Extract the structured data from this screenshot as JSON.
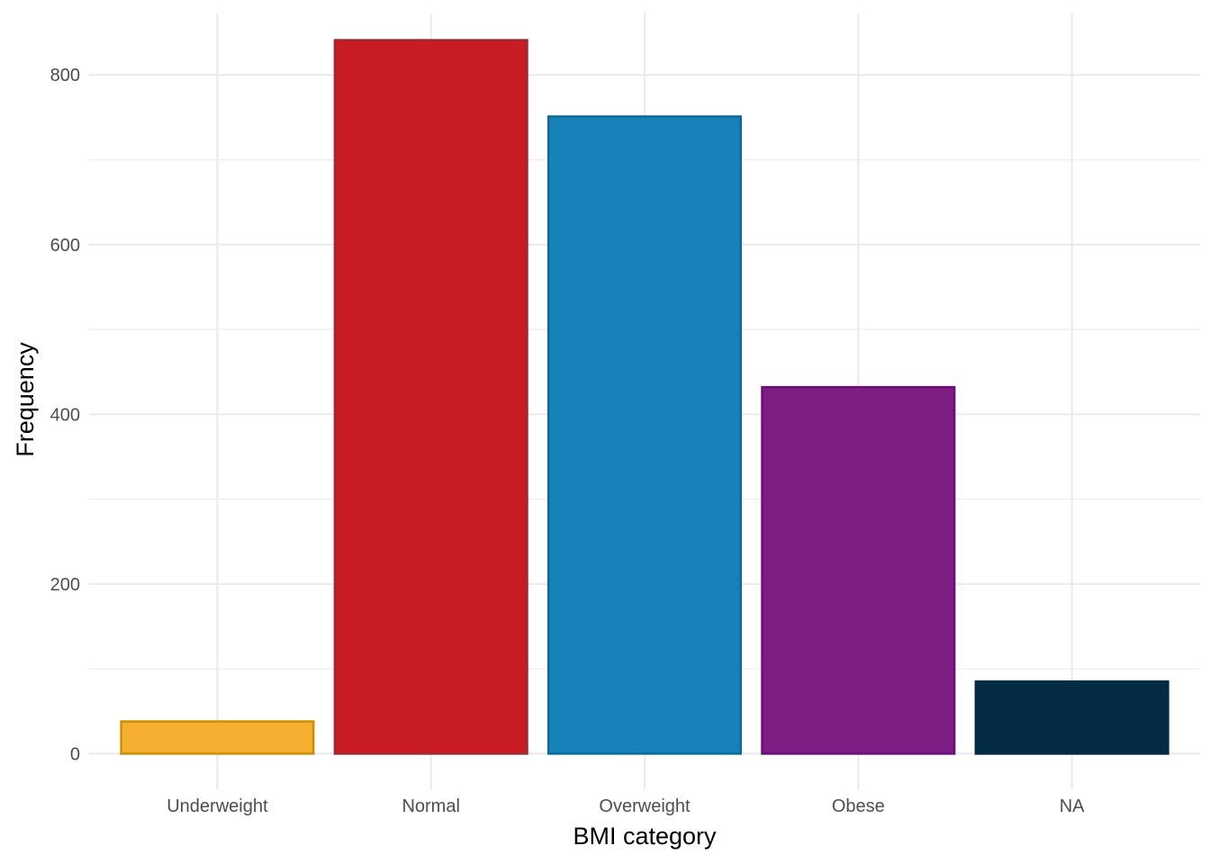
{
  "chart_data": {
    "type": "bar",
    "categories": [
      "Underweight",
      "Normal",
      "Overweight",
      "Obese",
      "NA"
    ],
    "values": [
      38,
      841,
      751,
      432,
      85
    ],
    "fill_colors": [
      "#F5AF31",
      "#C81C25",
      "#1781BA",
      "#7E1E84",
      "#032B44"
    ],
    "border_colors": [
      "#C98F00",
      "#9F2A2D",
      "#0E6A96",
      "#6A0E7A",
      "#032B44"
    ],
    "xlabel": "BMI category",
    "ylabel": "Frequency",
    "ylim": [
      -42,
      883
    ],
    "yticks": [
      0,
      200,
      400,
      600,
      800
    ],
    "yticks_minor": [
      100,
      300,
      500,
      700
    ],
    "grid": true,
    "legend": "none"
  }
}
